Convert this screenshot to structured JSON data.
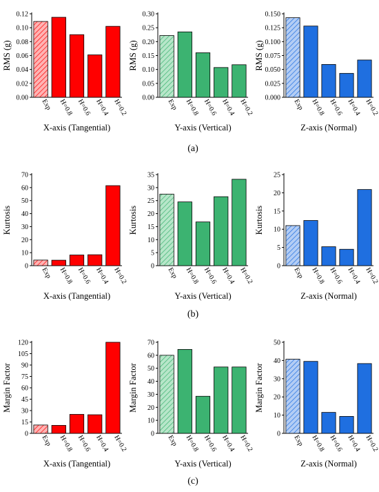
{
  "colors": {
    "X": "#ff0000",
    "Y": "#3cb371",
    "Z": "#1f6fe0"
  },
  "panel_labels": [
    "(a)",
    "(b)",
    "(c)"
  ],
  "chart_data": [
    {
      "type": "bar",
      "group": "a",
      "categories": [
        "Exp",
        "H=0.8",
        "H=0.6",
        "H=0.4",
        "H=0.2"
      ],
      "values": [
        0.109,
        0.115,
        0.09,
        0.061,
        0.102
      ],
      "hatched_first": true,
      "xlabel": "X-axis (Tangential)",
      "ylabel": "RMS (g)",
      "ylim": [
        0,
        0.12
      ],
      "yticks": [
        "0.00",
        "0.02",
        "0.04",
        "0.06",
        "0.08",
        "0.10",
        "0.12"
      ],
      "color": "#ff0000"
    },
    {
      "type": "bar",
      "group": "a",
      "categories": [
        "Exp",
        "H=0.8",
        "H=0.6",
        "H=0.4",
        "H=0.2"
      ],
      "values": [
        0.222,
        0.235,
        0.16,
        0.107,
        0.117
      ],
      "hatched_first": true,
      "xlabel": "Y-axis (Vertical)",
      "ylabel": "RMS (g)",
      "ylim": [
        0,
        0.3
      ],
      "yticks": [
        "0.00",
        "0.05",
        "0.10",
        "0.15",
        "0.20",
        "0.25",
        "0.30"
      ],
      "color": "#3cb371"
    },
    {
      "type": "bar",
      "group": "a",
      "categories": [
        "Exp",
        "H=0.8",
        "H=0.6",
        "H=0.4",
        "H=0.2"
      ],
      "values": [
        0.143,
        0.128,
        0.059,
        0.043,
        0.067
      ],
      "hatched_first": true,
      "xlabel": "Z-axis (Normal)",
      "ylabel": "RMS (g)",
      "ylim": [
        0,
        0.15
      ],
      "yticks": [
        "0.000",
        "0.025",
        "0.050",
        "0.075",
        "0.100",
        "0.125",
        "0.150"
      ],
      "color": "#1f6fe0"
    },
    {
      "type": "bar",
      "group": "b",
      "categories": [
        "Exp",
        "H=0.8",
        "H=0.6",
        "H=0.4",
        "H=0.2"
      ],
      "values": [
        4.3,
        4.2,
        8.2,
        8.4,
        61.5
      ],
      "hatched_first": true,
      "xlabel": "X-axis (Tangential)",
      "ylabel": "Kurtosis",
      "ylim": [
        0,
        70
      ],
      "yticks": [
        "0",
        "10",
        "20",
        "30",
        "40",
        "50",
        "60",
        "70"
      ],
      "color": "#ff0000"
    },
    {
      "type": "bar",
      "group": "b",
      "categories": [
        "Exp",
        "H=0.8",
        "H=0.6",
        "H=0.4",
        "H=0.2"
      ],
      "values": [
        27.5,
        24.5,
        16.8,
        26.5,
        33.2
      ],
      "hatched_first": true,
      "xlabel": "Y-axis (Vertical)",
      "ylabel": "Kurtosis",
      "ylim": [
        0,
        35
      ],
      "yticks": [
        "0",
        "5",
        "10",
        "15",
        "20",
        "25",
        "30",
        "35"
      ],
      "color": "#3cb371"
    },
    {
      "type": "bar",
      "group": "b",
      "categories": [
        "Exp",
        "H=0.8",
        "H=0.6",
        "H=0.4",
        "H=0.2"
      ],
      "values": [
        11.0,
        12.4,
        5.2,
        4.5,
        20.9
      ],
      "hatched_first": true,
      "xlabel": "Z-axis (Normal)",
      "ylabel": "Kurtosis",
      "ylim": [
        0,
        25
      ],
      "yticks": [
        "0",
        "5",
        "10",
        "15",
        "20",
        "25"
      ],
      "color": "#1f6fe0"
    },
    {
      "type": "bar",
      "group": "c",
      "categories": [
        "Exp",
        "H=0.8",
        "H=0.6",
        "H=0.4",
        "H=0.2"
      ],
      "values": [
        11.0,
        10.5,
        25.0,
        24.5,
        120.0
      ],
      "hatched_first": true,
      "xlabel": "X-axis (Tangential)",
      "ylabel": "Margin Factor",
      "ylim": [
        0,
        120
      ],
      "yticks": [
        "0",
        "15",
        "30",
        "45",
        "60",
        "75",
        "90",
        "105",
        "120"
      ],
      "color": "#ff0000"
    },
    {
      "type": "bar",
      "group": "c",
      "categories": [
        "Exp",
        "H=0.8",
        "H=0.6",
        "H=0.4",
        "H=0.2"
      ],
      "values": [
        60.0,
        64.5,
        28.5,
        51.0,
        51.0
      ],
      "hatched_first": true,
      "xlabel": "Y-axis (Vertical)",
      "ylabel": "Margin Factor",
      "ylim": [
        0,
        70
      ],
      "yticks": [
        "0",
        "10",
        "20",
        "30",
        "40",
        "50",
        "60",
        "70"
      ],
      "color": "#3cb371"
    },
    {
      "type": "bar",
      "group": "c",
      "categories": [
        "Exp",
        "H=0.8",
        "H=0.6",
        "H=0.4",
        "H=0.2"
      ],
      "values": [
        40.7,
        39.5,
        11.5,
        9.3,
        38.3
      ],
      "hatched_first": true,
      "xlabel": "Z-axis (Normal)",
      "ylabel": "Margin Factor",
      "ylim": [
        0,
        50
      ],
      "yticks": [
        "0",
        "10",
        "20",
        "30",
        "40",
        "50"
      ],
      "color": "#1f6fe0"
    }
  ]
}
